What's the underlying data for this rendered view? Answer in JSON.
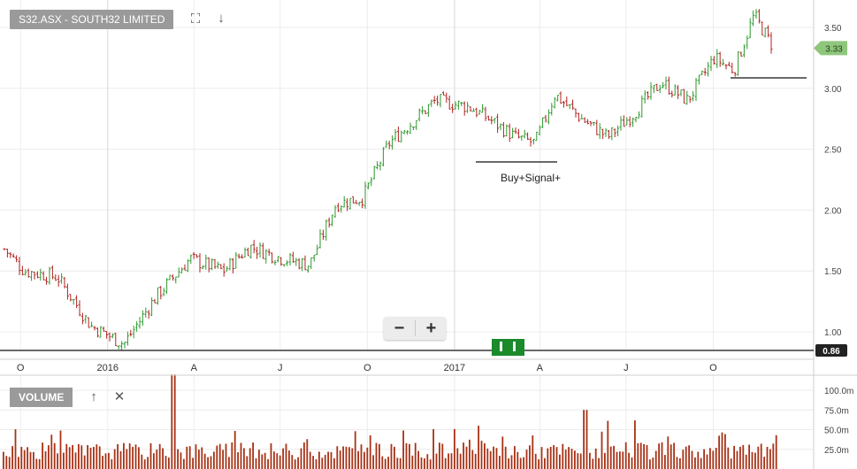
{
  "title": "S32.ASX - SOUTH32 LIMITED",
  "icons": {
    "expand": "expand-icon",
    "download": "download-arrow-icon"
  },
  "zoom": {
    "minus": "−",
    "plus": "+"
  },
  "colors": {
    "up": "#2e9a2e",
    "down": "#b22222",
    "volume": "#a83216",
    "last_price_bg": "#8fc67c",
    "grid": "#ececec"
  },
  "chart_data": [
    {
      "type": "ohlc",
      "price_axis": {
        "ticks": [
          "1.00",
          "1.50",
          "2.00",
          "2.50",
          "3.00",
          "3.50"
        ],
        "ylim": [
          0.86,
          3.7
        ]
      },
      "x_axis": {
        "ticks": [
          "O",
          "2016",
          "A",
          "J",
          "O",
          "2017",
          "A",
          "J",
          "O"
        ]
      },
      "last_price": "3.33",
      "reference_line": "0.86",
      "annotation": "Buy+Signal+",
      "close_path": {
        "x": [
          "2015-09-14",
          "2015-10-05",
          "2015-11-09",
          "2015-12-14",
          "2016-01-18",
          "2016-02-22",
          "2016-03-28",
          "2016-05-02",
          "2016-05-30",
          "2016-07-04",
          "2016-08-01",
          "2016-08-29",
          "2016-09-26",
          "2016-10-24",
          "2016-11-21",
          "2016-12-12",
          "2017-01-16",
          "2017-02-06",
          "2017-03-06",
          "2017-03-27",
          "2017-04-17",
          "2017-05-15",
          "2017-06-12",
          "2017-07-10",
          "2017-08-07",
          "2017-09-04",
          "2017-10-02",
          "2017-10-23",
          "2017-11-13",
          "2017-12-04"
        ],
        "close": [
          1.68,
          1.5,
          1.45,
          1.05,
          0.9,
          1.3,
          1.6,
          1.5,
          1.7,
          1.6,
          1.55,
          2.05,
          2.1,
          2.55,
          2.75,
          2.9,
          2.85,
          2.75,
          2.6,
          2.55,
          2.95,
          2.75,
          2.6,
          2.8,
          3.05,
          2.9,
          3.25,
          3.15,
          3.6,
          3.33
        ]
      }
    },
    {
      "type": "bar",
      "title": "VOLUME",
      "y_axis": {
        "ticks": [
          "25.0m",
          "50.0m",
          "75.0m",
          "100.0m"
        ],
        "ylim": [
          0,
          120
        ]
      },
      "note": "Weekly-ish daily volume bars, mostly 10–40m with a spike near 120m in early 2016."
    }
  ]
}
